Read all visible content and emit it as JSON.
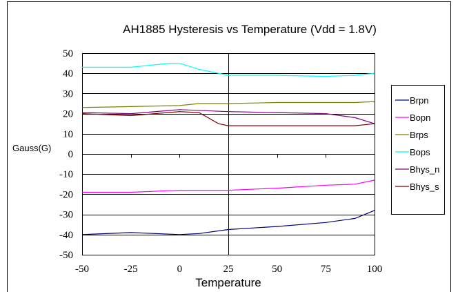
{
  "chart_data": {
    "type": "line",
    "title": "AH1885 Hysteresis vs Temperature  (Vdd = 1.8V)",
    "xlabel": "Temperature",
    "ylabel": "Gauss(G)",
    "xlim": [
      -50,
      100
    ],
    "ylim": [
      -50,
      50
    ],
    "xticks": [
      -50,
      -25,
      0,
      25,
      50,
      75,
      100
    ],
    "yticks": [
      50,
      40,
      30,
      20,
      10,
      0,
      -10,
      -20,
      -30,
      -40,
      -50
    ],
    "grid": "horizontal",
    "legend_position": "right",
    "series": [
      {
        "name": "Brpn",
        "color": "#000080",
        "x": [
          -50,
          -25,
          0,
          10,
          25,
          50,
          75,
          90,
          100
        ],
        "values": [
          -40,
          -39,
          -40,
          -39.5,
          -37.5,
          -36,
          -34,
          -32,
          -28
        ]
      },
      {
        "name": "Bopn",
        "color": "#ff00ff",
        "x": [
          -50,
          -25,
          0,
          25,
          50,
          75,
          90,
          100
        ],
        "values": [
          -19,
          -19,
          -18,
          -18,
          -17,
          -15.5,
          -15,
          -13
        ]
      },
      {
        "name": "Brps",
        "color": "#808000",
        "x": [
          -50,
          -25,
          0,
          10,
          25,
          50,
          75,
          90,
          100
        ],
        "values": [
          23,
          23.5,
          24,
          25,
          25,
          25.5,
          25.5,
          25.5,
          26
        ]
      },
      {
        "name": "Bops",
        "color": "#00ffff",
        "x": [
          -50,
          -25,
          -5,
          0,
          10,
          25,
          50,
          75,
          90,
          100
        ],
        "values": [
          43,
          43,
          45,
          45,
          42,
          39,
          39,
          38.5,
          39,
          40
        ]
      },
      {
        "name": "Bhys_n",
        "color": "#800080",
        "x": [
          -50,
          -25,
          0,
          25,
          50,
          75,
          90,
          100
        ],
        "values": [
          20.5,
          20,
          22,
          21,
          20.5,
          20,
          18,
          15
        ]
      },
      {
        "name": "Bhys_s",
        "color": "#800000",
        "x": [
          -50,
          -25,
          0,
          10,
          20,
          25,
          50,
          75,
          90,
          100
        ],
        "values": [
          20,
          19,
          21,
          20.5,
          15,
          14,
          14,
          14,
          14,
          15
        ]
      }
    ]
  }
}
